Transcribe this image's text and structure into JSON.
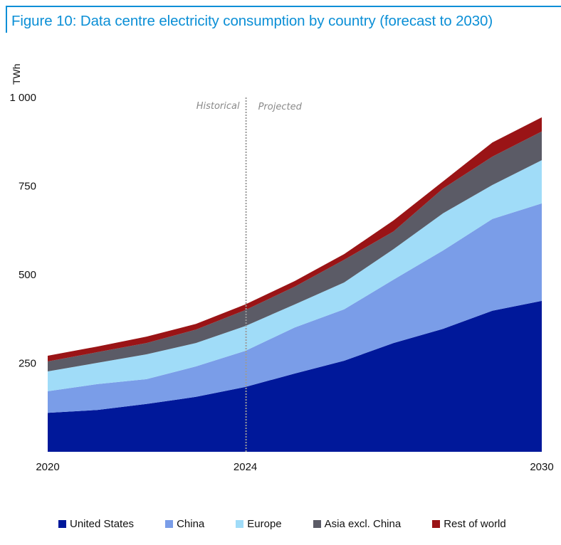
{
  "title": "Figure 10: Data centre electricity consumption by country (forecast to 2030)",
  "colors": {
    "title": "#0b8fd6",
    "united_states": "#00189a",
    "china": "#7a9de8",
    "europe": "#a0dcf8",
    "asia_excl_china": "#5b5b66",
    "rest_of_world": "#9a1416",
    "divider": "#9a9a9a"
  },
  "chart_data": {
    "type": "area",
    "stacked": true,
    "title": "Figure 10: Data centre electricity consumption by country (forecast to 2030)",
    "ylabel": "TWh",
    "xlabel": "",
    "x": [
      2020,
      2021,
      2022,
      2023,
      2024,
      2025,
      2026,
      2027,
      2028,
      2029,
      2030
    ],
    "xlim": [
      2020,
      2030
    ],
    "x_tick_labels": [
      "2020",
      "2024",
      "2030"
    ],
    "x_ticks": [
      2020,
      2024,
      2030
    ],
    "ylim": [
      0,
      1000
    ],
    "y_ticks": [
      250,
      500,
      750,
      1000
    ],
    "y_tick_labels": [
      "250",
      "500",
      "750",
      "1 000"
    ],
    "grid": false,
    "legend_position": "bottom",
    "series": [
      {
        "name": "United States",
        "color": "#00189a",
        "values": [
          110,
          118,
          135,
          155,
          183,
          221,
          257,
          307,
          347,
          398,
          426
        ]
      },
      {
        "name": "China",
        "color": "#7a9de8",
        "values": [
          61,
          73,
          70,
          86,
          102,
          130,
          145,
          179,
          221,
          259,
          275
        ]
      },
      {
        "name": "Europe",
        "color": "#a0dcf8",
        "values": [
          56,
          60,
          70,
          66,
          70,
          65,
          76,
          86,
          105,
          96,
          122
        ]
      },
      {
        "name": "Asia excl. China",
        "color": "#5b5b66",
        "values": [
          28,
          30,
          32,
          38,
          45,
          50,
          64,
          50,
          70,
          80,
          81
        ]
      },
      {
        "name": "Rest of world",
        "color": "#9a1416",
        "values": [
          16,
          16,
          18,
          16,
          16,
          16,
          16,
          31,
          20,
          40,
          40
        ]
      }
    ],
    "annotations": [
      {
        "text": "Historical",
        "side": "left-of-divider"
      },
      {
        "text": "Projected",
        "side": "right-of-divider"
      }
    ],
    "divider_x": 2024
  }
}
